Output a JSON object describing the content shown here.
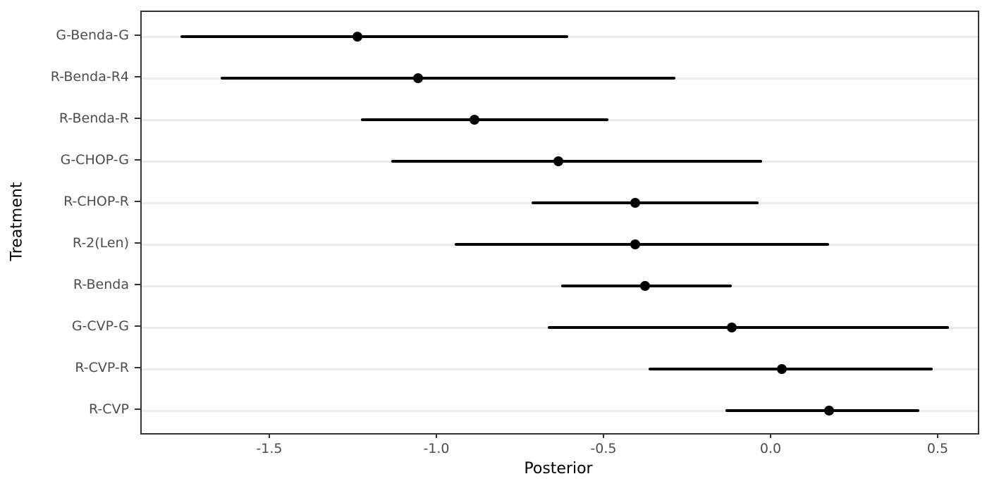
{
  "chart_data": {
    "type": "scatter",
    "subtype": "pointrange-forest",
    "title": "",
    "xlabel": "Posterior",
    "ylabel": "Treatment",
    "xlim": [
      -1.886,
      0.616
    ],
    "grid": "horizontal-only",
    "legend": "none",
    "x_ticks": [
      {
        "value": -1.5,
        "label": "-1.5"
      },
      {
        "value": -1.0,
        "label": "-1.0"
      },
      {
        "value": -0.5,
        "label": "-0.5"
      },
      {
        "value": 0.0,
        "label": "0.0"
      },
      {
        "value": 0.5,
        "label": "0.5"
      }
    ],
    "categories": [
      "G-Benda-G",
      "R-Benda-R4",
      "R-Benda-R",
      "G-CHOP-G",
      "R-CHOP-R",
      "R-2(Len)",
      "R-Benda",
      "G-CVP-G",
      "R-CVP-R",
      "R-CVP"
    ],
    "series": [
      {
        "name": "posterior-intervals",
        "points": [
          {
            "label": "G-Benda-G",
            "estimate": -1.24,
            "lower": -1.77,
            "upper": -0.61
          },
          {
            "label": "R-Benda-R4",
            "estimate": -1.06,
            "lower": -1.65,
            "upper": -0.29
          },
          {
            "label": "R-Benda-R",
            "estimate": -0.89,
            "lower": -1.23,
            "upper": -0.49
          },
          {
            "label": "G-CHOP-G",
            "estimate": -0.64,
            "lower": -1.14,
            "upper": -0.03
          },
          {
            "label": "R-CHOP-R",
            "estimate": -0.41,
            "lower": -0.72,
            "upper": -0.04
          },
          {
            "label": "R-2(Len)",
            "estimate": -0.41,
            "lower": -0.95,
            "upper": 0.17
          },
          {
            "label": "R-Benda",
            "estimate": -0.38,
            "lower": -0.63,
            "upper": -0.12
          },
          {
            "label": "G-CVP-G",
            "estimate": -0.12,
            "lower": -0.67,
            "upper": 0.53
          },
          {
            "label": "R-CVP-R",
            "estimate": 0.03,
            "lower": -0.37,
            "upper": 0.48
          },
          {
            "label": "R-CVP",
            "estimate": 0.17,
            "lower": -0.14,
            "upper": 0.44
          }
        ]
      }
    ]
  },
  "style": {
    "point_color": "#000000",
    "interval_color": "#000000",
    "grid_color": "#ebebeb",
    "panel_border_color": "#333333",
    "tick_color": "#333333",
    "tick_label_color": "#4d4d4d",
    "axis_title_color": "#000000",
    "background": "#ffffff"
  }
}
